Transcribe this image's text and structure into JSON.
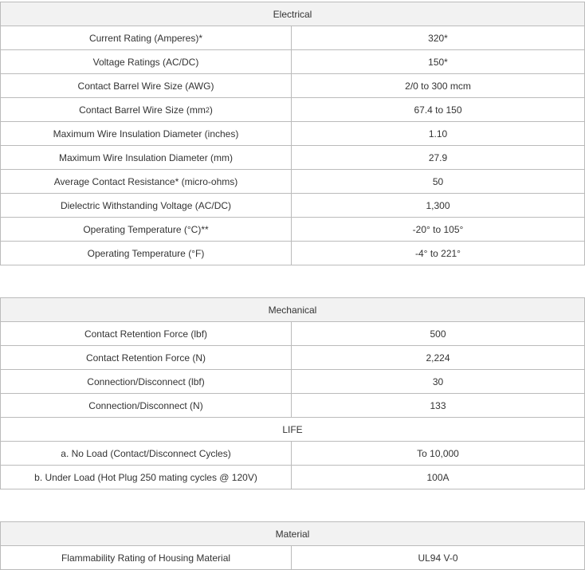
{
  "sections": [
    {
      "title": "Electrical",
      "rows": [
        [
          "Current Rating (Amperes)*",
          "320*"
        ],
        [
          "Voltage Ratings (AC/DC)",
          "150*"
        ],
        [
          "Contact Barrel Wire Size (AWG)",
          "2/0 to 300 mcm"
        ],
        [
          [
            "Contact Barrel Wire Size (mm",
            "2",
            ")"
          ],
          "67.4 to 150"
        ],
        [
          "Maximum Wire Insulation Diameter (inches)",
          "1.10"
        ],
        [
          "Maximum Wire Insulation Diameter (mm)",
          "27.9"
        ],
        [
          "Average Contact Resistance* (micro-ohms)",
          "50"
        ],
        [
          "Dielectric Withstanding Voltage (AC/DC)",
          "1,300"
        ],
        [
          "Operating Temperature (°C)**",
          "-20° to 105°"
        ],
        [
          "Operating Temperature (°F)",
          "-4° to 221°"
        ]
      ]
    },
    {
      "title": "Mechanical",
      "rows": [
        [
          "Contact Retention Force (lbf)",
          "500"
        ],
        [
          "Contact Retention Force (N)",
          "2,224"
        ],
        [
          "Connection/Disconnect (lbf)",
          "30"
        ],
        [
          "Connection/Disconnect (N)",
          "133"
        ]
      ],
      "subtitle": "LIFE",
      "subrows": [
        [
          "a. No Load (Contact/Disconnect Cycles)",
          "To 10,000"
        ],
        [
          "b. Under Load (Hot Plug 250 mating cycles @ 120V)",
          "100A"
        ]
      ]
    },
    {
      "title": "Material",
      "rows": [
        [
          "Flammability Rating of Housing Material",
          "UL94 V-0"
        ]
      ]
    }
  ]
}
